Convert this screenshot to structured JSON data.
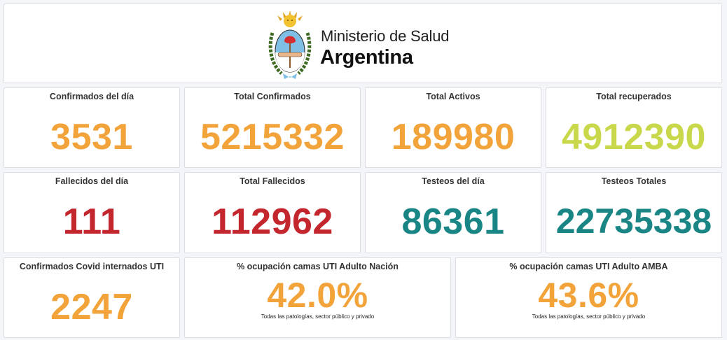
{
  "header": {
    "org_line1": "Ministerio de Salud",
    "org_line2": "Argentina",
    "logo_icon": "argentina-coat-of-arms-icon"
  },
  "colors": {
    "orange": "#f2a33a",
    "green": "#c8d84a",
    "red": "#c4262e",
    "teal": "#1a8585"
  },
  "cards": {
    "confirmados_dia": {
      "title": "Confirmados del día",
      "value": "3531"
    },
    "total_confirmados": {
      "title": "Total Confirmados",
      "value": "5215332"
    },
    "total_activos": {
      "title": "Total Activos",
      "value": "189980"
    },
    "total_recuperados": {
      "title": "Total recuperados",
      "value": "4912390"
    },
    "fallecidos_dia": {
      "title": "Fallecidos del día",
      "value": "111"
    },
    "total_fallecidos": {
      "title": "Total Fallecidos",
      "value": "112962"
    },
    "testeos_dia": {
      "title": "Testeos del día",
      "value": "86361"
    },
    "testeos_totales": {
      "title": "Testeos Totales",
      "value": "22735338"
    },
    "internados_uti": {
      "title": "Confirmados Covid internados UTI",
      "value": "2247"
    },
    "ocupacion_nacion": {
      "title": "% ocupación camas UTI Adulto Nación",
      "value": "42.0%",
      "subtitle": "Todas las patologías, sector público y privado"
    },
    "ocupacion_amba": {
      "title": "% ocupación camas UTI Adulto AMBA",
      "value": "43.6%",
      "subtitle": "Todas las patologías, sector público y privado"
    }
  }
}
